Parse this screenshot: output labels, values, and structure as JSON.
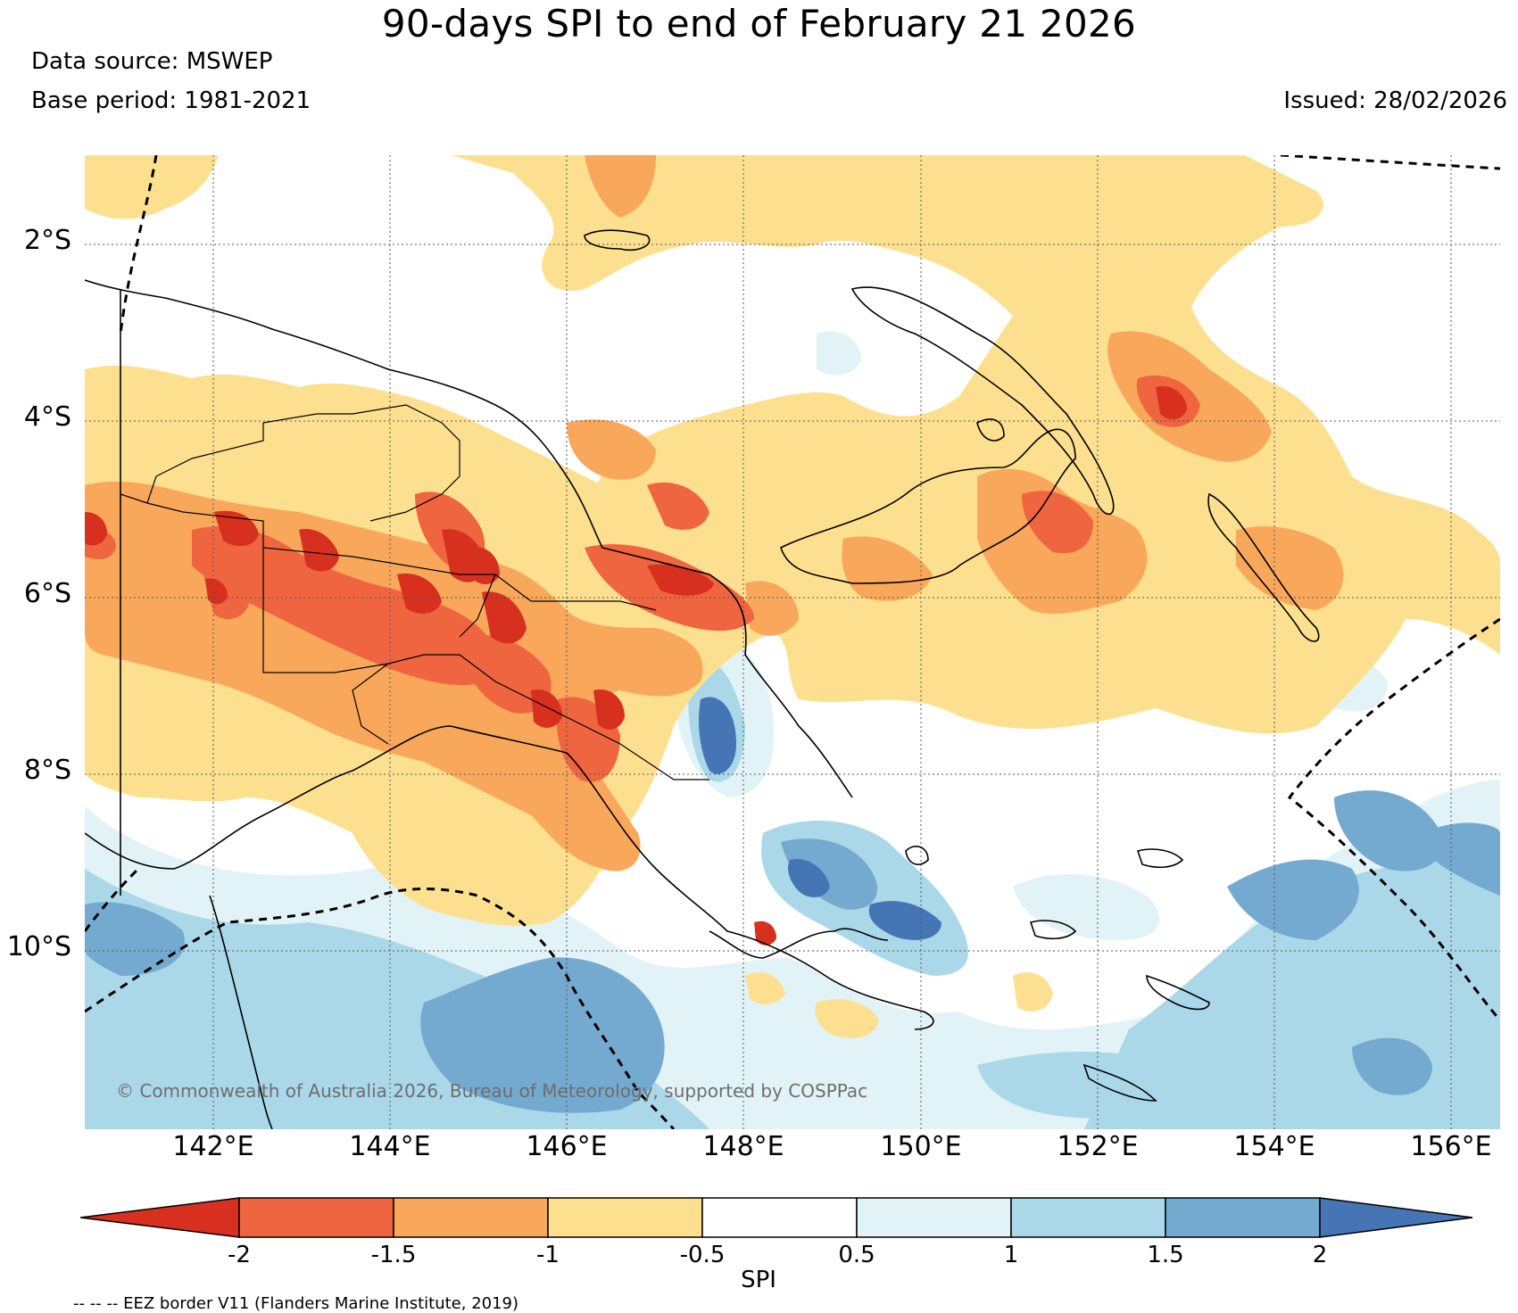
{
  "title": "90-days SPI to end of February 21 2026",
  "data_source": "Data source: MSWEP",
  "base_period": "Base period: 1981-2021",
  "issued": "Issued: 28/02/2026",
  "copyright": "© Commonwealth of Australia 2026, Bureau of Meteorology, supported by COSPPac",
  "eez_note": "-- -- -- EEZ border V11 (Flanders Marine Institute, 2019)",
  "latitude_labels": [
    "2°S",
    "4°S",
    "6°S",
    "8°S",
    "10°S"
  ],
  "longitude_labels": [
    "142°E",
    "144°E",
    "146°E",
    "148°E",
    "150°E",
    "152°E",
    "154°E",
    "156°E"
  ],
  "colorbar": {
    "label": "SPI",
    "ticks": [
      "-2",
      "-1.5",
      "-1",
      "-0.5",
      "0.5",
      "1",
      "1.5",
      "2"
    ],
    "colors": [
      "#d7301f",
      "#ef6540",
      "#f9a85b",
      "#fde08f",
      "#ffffff",
      "#e2f3f8",
      "#abd8e9",
      "#74aad0",
      "#4575b4"
    ]
  },
  "map_colors": {
    "ocean_neutral": "#ffffff",
    "dry_mild": "#fde08f",
    "dry_moderate": "#f9a85b",
    "dry_severe": "#ef6540",
    "dry_extreme": "#d7301f",
    "wet_mild": "#e2f3f8",
    "wet_moderate": "#abd8e9",
    "wet_severe": "#74aad0",
    "wet_extreme": "#4575b4"
  }
}
